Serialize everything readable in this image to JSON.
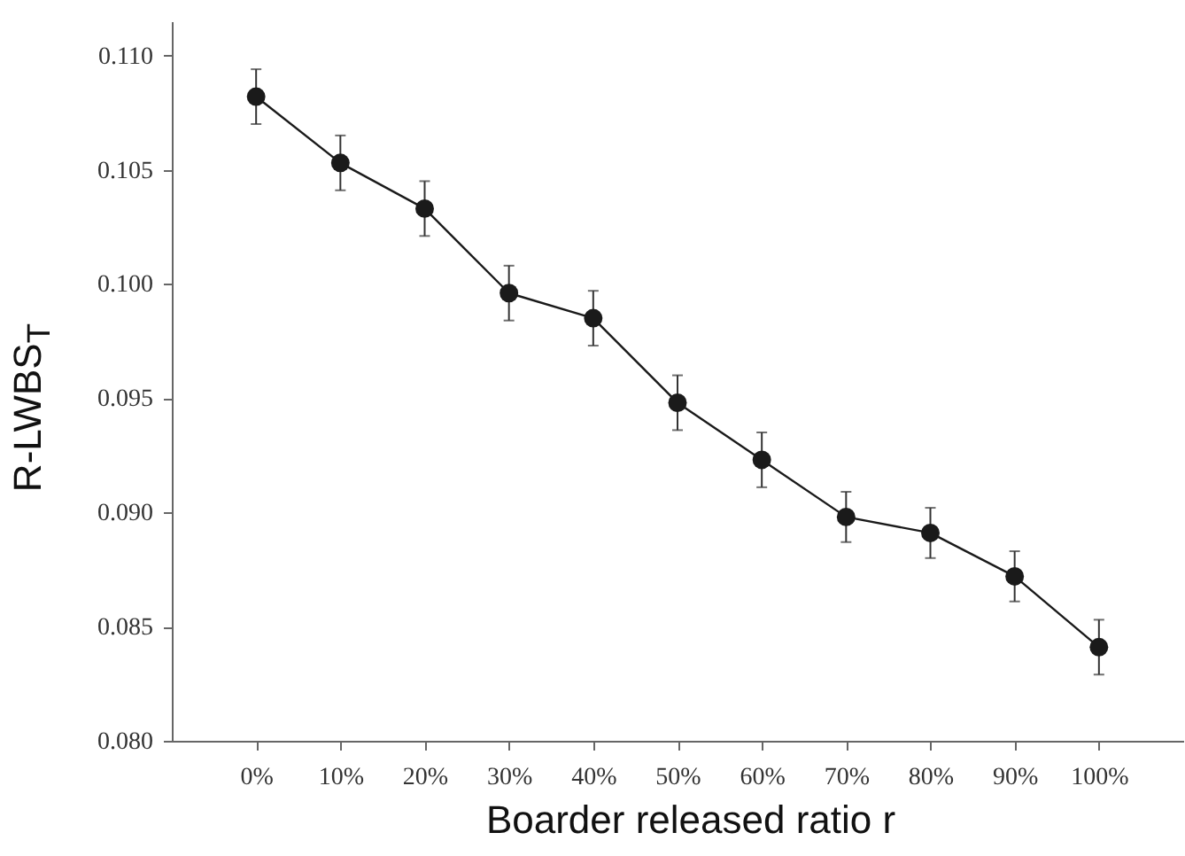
{
  "chart_data": {
    "type": "line",
    "xlabel": "Boarder released ratio r",
    "ylabel": "R-LWBS$_{T}$",
    "categories": [
      "0%",
      "10%",
      "20%",
      "30%",
      "40%",
      "50%",
      "60%",
      "70%",
      "80%",
      "90%",
      "100%"
    ],
    "series": [
      {
        "color": "#1a1a1a",
        "values": [
          0.1082,
          0.1053,
          0.1033,
          0.0996,
          0.0985,
          0.0948,
          0.0923,
          0.0898,
          0.0891,
          0.0872,
          0.0841
        ],
        "errors": [
          0.0012,
          0.0012,
          0.0012,
          0.0012,
          0.0012,
          0.0012,
          0.0012,
          0.0011,
          0.0011,
          0.0011,
          0.0012
        ]
      }
    ],
    "ylim": [
      0.08,
      0.1115
    ],
    "yticks": [
      {
        "value": 0.08,
        "label": "0.080"
      },
      {
        "value": 0.085,
        "label": "0.085"
      },
      {
        "value": 0.09,
        "label": "0.090"
      },
      {
        "value": 0.095,
        "label": "0.095"
      },
      {
        "value": 0.1,
        "label": "0.100"
      },
      {
        "value": 0.105,
        "label": "0.105"
      },
      {
        "value": 0.11,
        "label": "0.110"
      }
    ],
    "grid": false,
    "marker": "circle",
    "line_style": "solid"
  }
}
